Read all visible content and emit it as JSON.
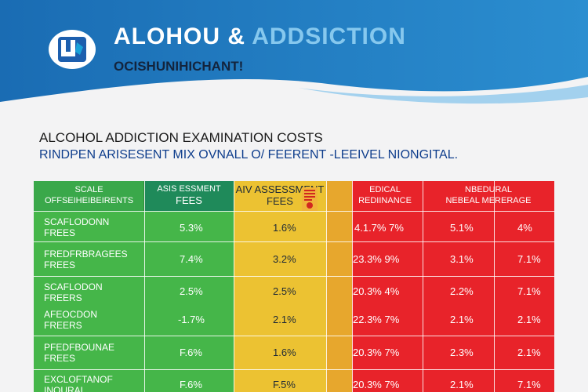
{
  "header": {
    "title_main": "ALOHOU & ",
    "title_accent": "ADDSICTION",
    "subtitle": "OCISHUNIHICHANT!"
  },
  "headings": {
    "line1": "ALCOHOL ADDICTION EXAMINATION COSTS",
    "line2": "RINDPEN ARISESENT MIX OVNALL O/ FEERENT -LEEIVEL NIONGITAL."
  },
  "table": {
    "headers": {
      "col1_line1": "SCALE",
      "col1_line2": "OFFSEIHEIBEIRENTS",
      "col2_line1": "ASIS ESSMENT",
      "col2_line2": "FEES",
      "col3_line1": "AIV ASSESSMENT",
      "col3_line2": "FEES",
      "col4_line1": "EDICAL",
      "col4_line2": "REDIINANCE",
      "col5_line1": "NBEDURAL",
      "col5_line2": "NEBEAL MERERAGE"
    },
    "rows": [
      {
        "label_1": "SCAFLODONN",
        "label_2": "FREES",
        "v1": "5.3%",
        "v2": "1.6%",
        "v3": "4.1.7%  7%",
        "v4": "5.1%",
        "v5": "4%"
      },
      {
        "label_1": "FREDFRBRAGEES",
        "label_2": "FREES",
        "v1": "7.4%",
        "v2": "3.2%",
        "v3": "23.3%  9%",
        "v4": "3.1%",
        "v5": "7.1%"
      },
      {
        "label_1": "SCAFLODON",
        "label_2": "FREERS",
        "v1": "2.5%",
        "v2": "2.5%",
        "v3": "20.3%  4%",
        "v4": "2.2%",
        "v5": "7.1%"
      },
      {
        "label_1": "AFEOCDON",
        "label_2": "FREERS",
        "v1": "-1.7%",
        "v2": "2.1%",
        "v3": "22.3%  7%",
        "v4": "2.1%",
        "v5": "2.1%"
      },
      {
        "label_1": "PFEDFBOUNAE",
        "label_2": "FREES",
        "v1": "F.6%",
        "v2": "1.6%",
        "v3": "20.3%  7%",
        "v4": "2.3%",
        "v5": "2.1%"
      },
      {
        "label_1": "EXCLOFTANOF",
        "label_2": "INOURAL",
        "v1": "F.6%",
        "v2": "F.5%",
        "v3": "20.3%  7%",
        "v4": "2.1%",
        "v5": "7.1%"
      }
    ]
  },
  "colors": {
    "header_blue": "#1e73b8",
    "green": "#45b649",
    "yellow": "#ecc232",
    "red": "#e8232a"
  },
  "icons": {
    "logo": "shield-logo-icon",
    "stamp": "stamp-icon"
  }
}
